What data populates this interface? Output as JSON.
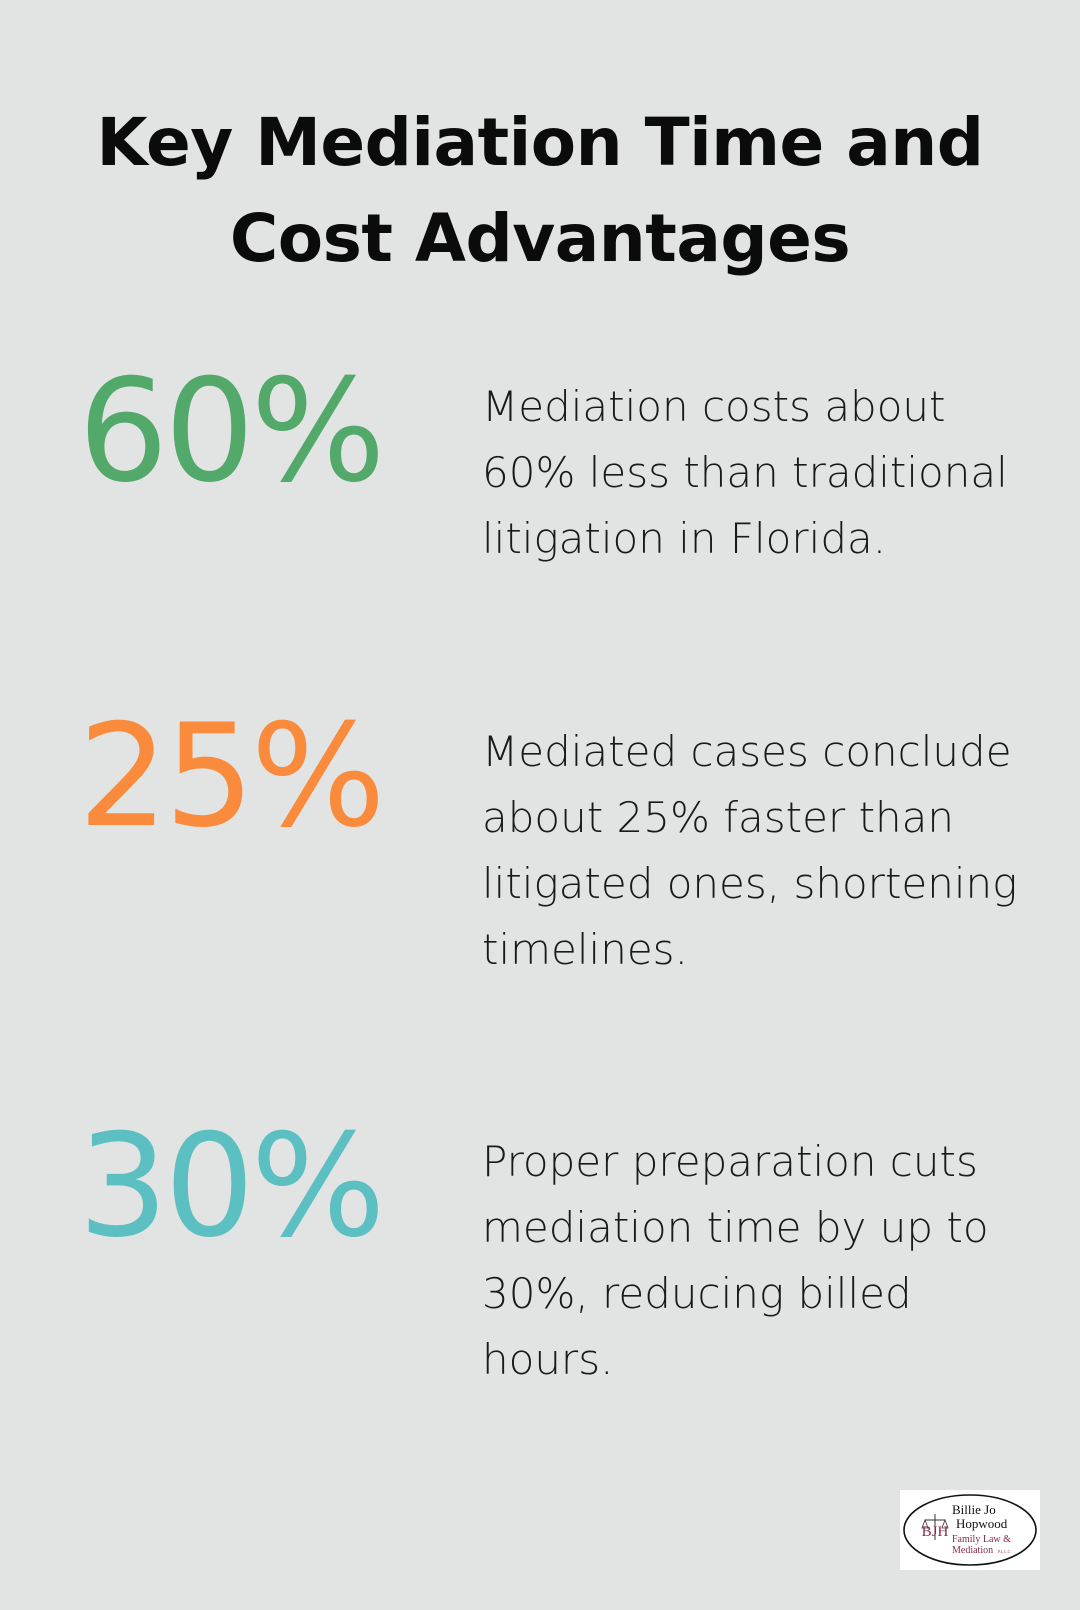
{
  "title": "Key Mediation Time and Cost Advantages",
  "stats": [
    {
      "value": "60%",
      "color": "#52a96a",
      "text": "Mediation costs about 60% less than traditional litigation in Florida."
    },
    {
      "value": "25%",
      "color": "#fb8b3c",
      "text": "Mediated cases conclude about 25% faster than litigated ones, shortening timelines."
    },
    {
      "value": "30%",
      "color": "#5cbfc2",
      "text": "Proper preparation cuts mediation time by up to 30%, reducing billed hours."
    }
  ],
  "logo": {
    "monogram": "BJH",
    "name_line1": "Billie Jo",
    "name_line2": "Hopwood",
    "tagline_line1": "Family Law &",
    "tagline_line2": "Mediation",
    "suffix": "P.L.L.C."
  }
}
